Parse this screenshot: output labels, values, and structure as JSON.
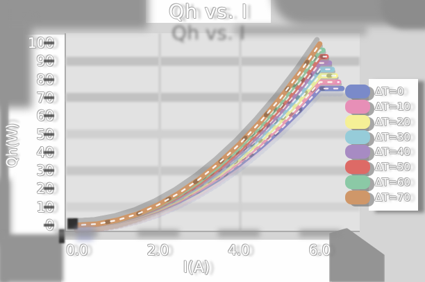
{
  "title": "Qh vs. I",
  "chart_data": {
    "type": "line",
    "title": "Qh vs. I",
    "xlabel": "I(A)",
    "ylabel": "Qh(W)",
    "xlim": [
      0,
      6.6
    ],
    "ylim": [
      0,
      100
    ],
    "grid": {
      "h_values": [
        90,
        70,
        50,
        30,
        10
      ],
      "v_values": [
        2,
        4
      ]
    },
    "legend_position": "right",
    "x_ticks": [
      {
        "value": 0,
        "label": "0.0"
      },
      {
        "value": 2,
        "label": "2.0"
      },
      {
        "value": 4,
        "label": "4.0"
      },
      {
        "value": 6,
        "label": "6.0"
      }
    ],
    "y_ticks": [
      {
        "value": 0,
        "label": "0"
      },
      {
        "value": 10,
        "label": "10"
      },
      {
        "value": 20,
        "label": "20"
      },
      {
        "value": 30,
        "label": "30"
      },
      {
        "value": 40,
        "label": "40"
      },
      {
        "value": 50,
        "label": "50"
      },
      {
        "value": 60,
        "label": "60"
      },
      {
        "value": 70,
        "label": "70"
      },
      {
        "value": 80,
        "label": "80"
      },
      {
        "value": 90,
        "label": "90"
      },
      {
        "value": 100,
        "label": "100"
      }
    ],
    "x": [
      0,
      0.5,
      1,
      1.5,
      2,
      2.5,
      3,
      3.5,
      4,
      4.5,
      5,
      5.5,
      6
    ],
    "series": [
      {
        "name": "ΔT=0",
        "color": "#7a8ac9",
        "x_end": 6.55,
        "values": [
          0,
          0.5,
          2.1,
          4.7,
          8.3,
          13.0,
          18.8,
          25.5,
          33.3,
          42.2,
          52.1,
          63.0,
          75.0
        ]
      },
      {
        "name": "ΔT=10",
        "color": "#e78fb7",
        "x_end": 6.47,
        "values": [
          0,
          0.5,
          2.2,
          4.9,
          8.7,
          13.6,
          19.6,
          26.7,
          34.9,
          44.2,
          54.5,
          66.0,
          78.5
        ]
      },
      {
        "name": "ΔT=20",
        "color": "#f5f096",
        "x_end": 6.39,
        "values": [
          0,
          0.6,
          2.3,
          5.1,
          9.1,
          14.2,
          20.5,
          27.9,
          36.4,
          46.1,
          56.9,
          68.9,
          82.0
        ]
      },
      {
        "name": "ΔT=30",
        "color": "#96ccd9",
        "x_end": 6.31,
        "values": [
          0,
          0.6,
          2.4,
          5.3,
          9.5,
          14.8,
          21.4,
          29.1,
          38.0,
          48.1,
          59.4,
          71.8,
          85.5
        ]
      },
      {
        "name": "ΔT=40",
        "color": "#a78bc3",
        "x_end": 6.24,
        "values": [
          0,
          0.6,
          2.5,
          5.6,
          9.9,
          15.5,
          22.2,
          30.3,
          39.6,
          50.1,
          61.8,
          74.8,
          89.0
        ]
      },
      {
        "name": "ΔT=50",
        "color": "#dd6a66",
        "x_end": 6.16,
        "values": [
          0,
          0.6,
          2.6,
          5.8,
          10.3,
          16.1,
          23.1,
          31.5,
          41.1,
          52.0,
          64.2,
          77.7,
          92.5
        ]
      },
      {
        "name": "ΔT=60",
        "color": "#8bc9a6",
        "x_end": 6.08,
        "values": [
          0,
          0.7,
          2.7,
          6.0,
          10.7,
          16.7,
          24.0,
          32.7,
          42.7,
          54.0,
          66.7,
          80.7,
          96.0
        ]
      },
      {
        "name": "ΔT=70",
        "color": "#cf9769",
        "x_end": 6.0,
        "values": [
          0,
          0.7,
          2.8,
          6.2,
          11.1,
          17.3,
          24.9,
          33.9,
          44.2,
          56.0,
          69.1,
          83.6,
          99.5
        ]
      }
    ]
  }
}
